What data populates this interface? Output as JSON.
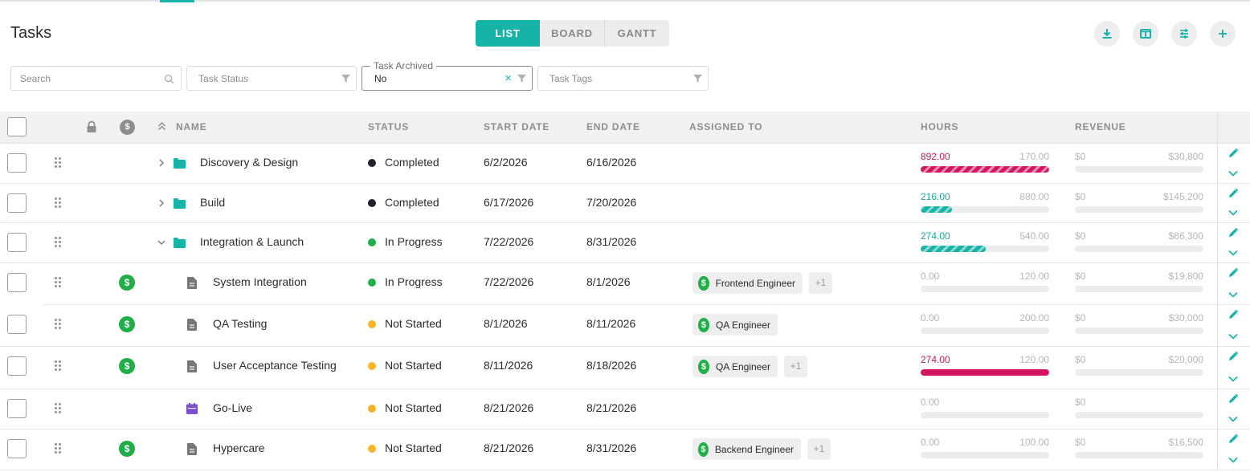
{
  "page": {
    "title": "Tasks"
  },
  "views": [
    {
      "label": "LIST",
      "active": true
    },
    {
      "label": "BOARD",
      "active": false
    },
    {
      "label": "GANTT",
      "active": false
    }
  ],
  "toolbar": [
    {
      "name": "download-icon"
    },
    {
      "name": "columns-icon"
    },
    {
      "name": "sliders-icon"
    },
    {
      "name": "plus-icon"
    }
  ],
  "filters": {
    "search": {
      "placeholder": "Search"
    },
    "status": {
      "placeholder": "Task Status"
    },
    "archived": {
      "label": "Task Archived",
      "value": "No"
    },
    "tags": {
      "placeholder": "Task Tags"
    }
  },
  "columns": {
    "name": "NAME",
    "status": "STATUS",
    "start": "START DATE",
    "end": "END DATE",
    "assigned": "ASSIGNED TO",
    "hours": "HOURS",
    "revenue": "REVENUE"
  },
  "colors": {
    "accent": "#15b3a8",
    "completed": "#1f2430",
    "in_progress": "#1fae47",
    "not_started": "#f7b425",
    "over_budget": "#d1165f"
  },
  "rows": [
    {
      "name": "Discovery & Design",
      "type": "phase",
      "expand": "collapsed",
      "status": "Completed",
      "status_color": "#1f2430",
      "start": "6/2/2026",
      "end": "6/16/2026",
      "assignees": [],
      "more": "",
      "has_revenue_icon": false,
      "hours_actual": "892.00",
      "hours_budget": "170.00",
      "hours_fraction": 1.0,
      "hours_style": "stripe-red",
      "hours_color": "#c2185b",
      "revenue_actual": "$0",
      "revenue_budget": "$30,800"
    },
    {
      "name": "Build",
      "type": "phase",
      "expand": "collapsed",
      "status": "Completed",
      "status_color": "#1f2430",
      "start": "6/17/2026",
      "end": "7/20/2026",
      "assignees": [],
      "more": "",
      "has_revenue_icon": false,
      "hours_actual": "216.00",
      "hours_budget": "880.00",
      "hours_fraction": 0.245,
      "hours_style": "stripe-teal",
      "hours_color": "#15a89e",
      "revenue_actual": "$0",
      "revenue_budget": "$145,200"
    },
    {
      "name": "Integration & Launch",
      "type": "phase",
      "expand": "expanded",
      "status": "In Progress",
      "status_color": "#1fae47",
      "start": "7/22/2026",
      "end": "8/31/2026",
      "assignees": [],
      "more": "",
      "has_revenue_icon": false,
      "hours_actual": "274.00",
      "hours_budget": "540.00",
      "hours_fraction": 0.507,
      "hours_style": "stripe-teal",
      "hours_color": "#15a89e",
      "revenue_actual": "$0",
      "revenue_budget": "$86,300"
    },
    {
      "name": "System Integration",
      "type": "task",
      "expand": "",
      "status": "In Progress",
      "status_color": "#1fae47",
      "start": "7/22/2026",
      "end": "8/1/2026",
      "assignees": [
        "Frontend Engineer"
      ],
      "more": "+1",
      "has_revenue_icon": true,
      "hours_actual": "0.00",
      "hours_budget": "120.00",
      "hours_fraction": 0,
      "hours_style": "",
      "hours_color": "#b5b5b5",
      "revenue_actual": "$0",
      "revenue_budget": "$19,800"
    },
    {
      "name": "QA Testing",
      "type": "task",
      "expand": "",
      "status": "Not Started",
      "status_color": "#f7b425",
      "start": "8/1/2026",
      "end": "8/11/2026",
      "assignees": [
        "QA Engineer"
      ],
      "more": "",
      "has_revenue_icon": true,
      "hours_actual": "0.00",
      "hours_budget": "200.00",
      "hours_fraction": 0,
      "hours_style": "",
      "hours_color": "#b5b5b5",
      "revenue_actual": "$0",
      "revenue_budget": "$30,000"
    },
    {
      "name": "User Acceptance Testing",
      "type": "task",
      "expand": "",
      "status": "Not Started",
      "status_color": "#f7b425",
      "start": "8/11/2026",
      "end": "8/18/2026",
      "assignees": [
        "QA Engineer"
      ],
      "more": "+1",
      "has_revenue_icon": true,
      "hours_actual": "274.00",
      "hours_budget": "120.00",
      "hours_fraction": 1.0,
      "hours_style": "solid-red",
      "hours_color": "#c2185b",
      "revenue_actual": "$0",
      "revenue_budget": "$20,000"
    },
    {
      "name": "Go-Live",
      "type": "milestone",
      "expand": "",
      "status": "Not Started",
      "status_color": "#f7b425",
      "start": "8/21/2026",
      "end": "8/21/2026",
      "assignees": [],
      "more": "",
      "has_revenue_icon": false,
      "hours_actual": "0.00",
      "hours_budget": "",
      "hours_fraction": 0,
      "hours_style": "",
      "hours_color": "#b5b5b5",
      "revenue_actual": "$0",
      "revenue_budget": ""
    },
    {
      "name": "Hypercare",
      "type": "task",
      "expand": "",
      "status": "Not Started",
      "status_color": "#f7b425",
      "start": "8/21/2026",
      "end": "8/31/2026",
      "assignees": [
        "Backend Engineer"
      ],
      "more": "+1",
      "has_revenue_icon": true,
      "hours_actual": "0.00",
      "hours_budget": "100.00",
      "hours_fraction": 0,
      "hours_style": "",
      "hours_color": "#b5b5b5",
      "revenue_actual": "$0",
      "revenue_budget": "$16,500"
    }
  ]
}
